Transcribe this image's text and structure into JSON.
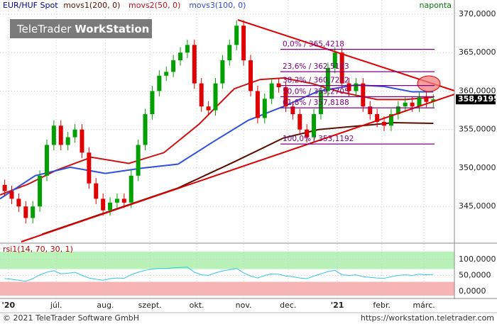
{
  "header": {
    "logo_a": "TeleTrader",
    "logo_b": "WorkStation",
    "interval": "naponta",
    "footer_left": "© 2021 TeleTrader Software GmbH",
    "footer_right": "https://workstation.teletrader.com"
  },
  "chart_data": [
    {
      "type": "candlestick",
      "title": "EUR/HUF Spot",
      "grid": true,
      "up_color": "#00a000",
      "down_color": "#e00000",
      "xlim": [
        0,
        194
      ],
      "ylim": [
        340.32,
        371.84
      ],
      "yticks": [
        {
          "value": 345,
          "label": "345,0000"
        },
        {
          "value": 350,
          "label": "350,0000"
        },
        {
          "value": 355,
          "label": "355,0000"
        },
        {
          "value": 360,
          "label": "360,0000"
        },
        {
          "value": 365,
          "label": "365,0000"
        },
        {
          "value": 370,
          "label": "370,0000"
        }
      ],
      "xticks": [
        {
          "value": 3.6,
          "label": "'20"
        },
        {
          "value": 24,
          "label": "júl."
        },
        {
          "value": 45,
          "label": "aug."
        },
        {
          "value": 64,
          "label": "szept."
        },
        {
          "value": 84,
          "label": "okt."
        },
        {
          "value": 104,
          "label": "nov."
        },
        {
          "value": 123,
          "label": "dec."
        },
        {
          "value": 144,
          "label": "'21"
        },
        {
          "value": 163,
          "label": "febr."
        },
        {
          "value": 181,
          "label": "márc."
        }
      ],
      "x": [
        2,
        5,
        8,
        11,
        14,
        17,
        20,
        23,
        26,
        29,
        32,
        35,
        38,
        41,
        44,
        47,
        50,
        53,
        56,
        59,
        62,
        65,
        68,
        71,
        74,
        77,
        80,
        83,
        86,
        89,
        92,
        95,
        98,
        101,
        104,
        107,
        110,
        113,
        116,
        119,
        122,
        125,
        128,
        131,
        134,
        137,
        140,
        143,
        146,
        149,
        152,
        155,
        158,
        161,
        164,
        167,
        170,
        173,
        176,
        179,
        182,
        185
      ],
      "open": [
        347.8,
        347,
        346,
        345,
        343.5,
        345,
        349,
        353,
        355.5,
        353,
        354,
        355,
        352,
        348,
        346,
        344.5,
        345.5,
        346,
        345.5,
        349,
        353,
        357,
        360,
        362,
        362.5,
        364,
        365,
        366,
        361,
        358,
        357.5,
        361,
        364,
        366,
        368.5,
        364,
        360,
        356.5,
        359,
        361,
        360.5,
        358,
        357,
        355,
        354,
        357,
        360,
        363,
        365,
        361,
        360,
        361,
        358,
        357,
        356,
        355.5,
        357,
        358,
        358.5,
        358,
        359.2,
        358.6
      ],
      "high": [
        348.5,
        347.7,
        346.7,
        345.7,
        345.7,
        349.7,
        353.7,
        356.2,
        356.2,
        354.7,
        355.7,
        355.7,
        352.7,
        348.7,
        346.7,
        346.2,
        346.7,
        346.7,
        349.7,
        353.7,
        357.7,
        360.7,
        362.7,
        363.2,
        364.7,
        365.7,
        366.7,
        366.7,
        361.7,
        358.7,
        361.7,
        364.7,
        366.7,
        369.2,
        369.2,
        364.7,
        360.7,
        359.7,
        361.7,
        361.7,
        361.2,
        358.7,
        357.7,
        355.7,
        357.7,
        360.7,
        363.7,
        365.7,
        365.7,
        361.7,
        361.7,
        361.7,
        358.7,
        357.7,
        356.7,
        357.7,
        358.7,
        359.2,
        359.2,
        359.9,
        359.9,
        359.6
      ],
      "low": [
        346.3,
        345.3,
        344.3,
        342.8,
        342.8,
        344.3,
        348.3,
        352.3,
        352.3,
        352.3,
        353.3,
        351.3,
        347.3,
        345.3,
        343.8,
        343.8,
        344.8,
        344.8,
        344.8,
        348.3,
        352.3,
        356.3,
        359.3,
        361.3,
        361.8,
        363.3,
        364.3,
        360.3,
        357.3,
        356.8,
        356.8,
        360.3,
        363.3,
        365.3,
        363.3,
        359.3,
        355.8,
        355.8,
        358.3,
        359.8,
        357.3,
        356.3,
        354.3,
        353.3,
        353.3,
        356.3,
        359.3,
        362.3,
        360.3,
        359.3,
        359.3,
        357.3,
        356.3,
        355.3,
        354.8,
        354.8,
        356.3,
        357.3,
        357.3,
        357.3,
        357.9,
        357.9
      ],
      "close": [
        347,
        346,
        345,
        343.5,
        345,
        349,
        353,
        355.5,
        353,
        354,
        355,
        352,
        348,
        346,
        344.5,
        345.5,
        346,
        345.5,
        349,
        353,
        357,
        360,
        362,
        362.5,
        364,
        365,
        366,
        361,
        358,
        357.5,
        361,
        364,
        366,
        368.5,
        364,
        360,
        356.5,
        359,
        361,
        360.5,
        358,
        357,
        355,
        354,
        357,
        360,
        363,
        365,
        361,
        360,
        361,
        358,
        357,
        356,
        355.5,
        357,
        358,
        358.5,
        358,
        359.2,
        358.6,
        358.9195
      ],
      "last_price": {
        "value": 358.9195,
        "label": "358,9195"
      },
      "series": [
        {
          "name": "movs1(200, 0)",
          "color": "#5a1000",
          "x": [
            18,
            45,
            76,
            100,
            121,
            136,
            158,
            168,
            185
          ],
          "values": [
            341.4,
            344.2,
            347.4,
            350.8,
            353.9,
            355,
            355.6,
            355.9,
            355.8
          ]
        },
        {
          "name": "movs2(50, 0)",
          "color": "#d01010",
          "x": [
            0,
            12,
            24,
            39,
            55,
            70,
            85,
            100,
            111,
            121,
            133,
            145,
            161,
            173,
            185
          ],
          "values": [
            346.5,
            347.9,
            349.7,
            351.4,
            350.6,
            352,
            355.7,
            360.3,
            361.5,
            361.7,
            361,
            359.9,
            358.9,
            358.9,
            359.2
          ]
        },
        {
          "name": "movs3(100, 0)",
          "color": "#2f4fe0",
          "x": [
            0,
            15,
            30,
            45,
            61,
            76,
            91,
            106,
            121,
            136,
            152,
            164,
            176,
            185
          ],
          "values": [
            346,
            349,
            350.1,
            349.3,
            350,
            350.5,
            353.4,
            356.2,
            358,
            360,
            360.8,
            360.6,
            359.9,
            359.9
          ]
        }
      ],
      "fib_levels": [
        {
          "value": 365.4218,
          "label": "0,0% / 365,4218"
        },
        {
          "value": 362.5183,
          "label": "23,6% / 362,5183"
        },
        {
          "value": 360.7222,
          "label": "38,2% / 360,7222"
        },
        {
          "value": 359.2705,
          "label": "50,0% / 359,2705"
        },
        {
          "value": 357.8188,
          "label": "61,8% / 357,8188"
        },
        {
          "value": 353.1192,
          "label": "100,0% / 353,1192"
        }
      ]
    },
    {
      "type": "line",
      "title": "rsi1(14, 70, 30, 1)",
      "color": "#30c8e8",
      "overbought": 70,
      "oversold": 30,
      "ylim": [
        -20,
        146.7
      ],
      "yticks": [
        {
          "value": 0,
          "label": "0,0000"
        },
        {
          "value": 50,
          "label": "50,0000"
        },
        {
          "value": 100,
          "label": "100,0000"
        }
      ],
      "x": [
        2,
        5,
        8,
        11,
        14,
        17,
        20,
        23,
        26,
        29,
        32,
        35,
        38,
        41,
        44,
        47,
        50,
        53,
        56,
        59,
        62,
        65,
        68,
        71,
        74,
        77,
        80,
        83,
        86,
        89,
        92,
        95,
        98,
        101,
        104,
        107,
        110,
        113,
        116,
        119,
        122,
        125,
        128,
        131,
        134,
        137,
        140,
        143,
        146,
        149,
        152,
        155,
        158,
        161,
        164,
        167,
        170,
        173,
        176,
        179,
        182,
        185
      ],
      "values": [
        40,
        38,
        35,
        32,
        40,
        52,
        60,
        65,
        55,
        57,
        60,
        50,
        42,
        38,
        35,
        40,
        42,
        41,
        52,
        60,
        66,
        70,
        72,
        72,
        74,
        75,
        76,
        60,
        52,
        50,
        58,
        64,
        68,
        72,
        58,
        48,
        42,
        50,
        55,
        54,
        48,
        46,
        42,
        40,
        48,
        55,
        62,
        66,
        52,
        50,
        52,
        46,
        44,
        42,
        41,
        46,
        50,
        52,
        50,
        54,
        52,
        53
      ]
    }
  ]
}
